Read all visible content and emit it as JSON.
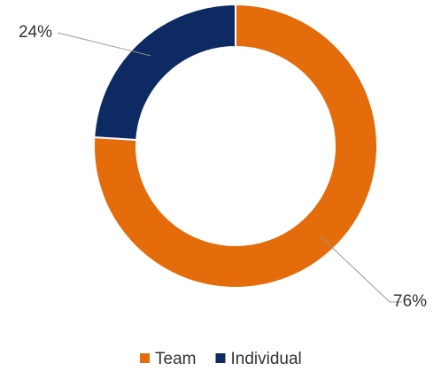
{
  "chart_data": {
    "type": "donut",
    "categories": [
      "Team",
      "Individual"
    ],
    "values": [
      76,
      24
    ],
    "value_labels": [
      "76%",
      "24%"
    ],
    "colors": [
      "#e46c0a",
      "#0e2a63"
    ],
    "legend": "bottom"
  }
}
